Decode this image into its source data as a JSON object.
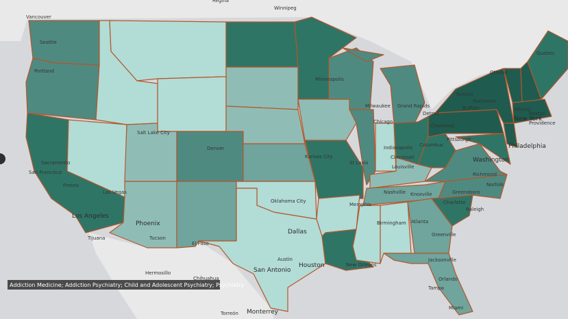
{
  "map": {
    "tooltip": "Addiction Medicine; Addiction Psychiatry; Child and Adolescent Psychiatry; Psychiatry",
    "cities": [
      "Regina",
      "Winnipeg",
      "Vancouver",
      "Seattle",
      "Portland",
      "Quebec",
      "Ottawa",
      "Toronto",
      "Rochester",
      "Buffalo",
      "Albany",
      "Boston",
      "Providence",
      "New York",
      "Philadelphia",
      "Washington",
      "Detroit",
      "Cleveland",
      "Pittsburgh",
      "Columbus",
      "Milwaukee",
      "Grand Rapids",
      "Chicago",
      "Minneapolis",
      "Indianapolis",
      "Cincinnati",
      "Louisville",
      "St Louis",
      "Kansas City",
      "Denver",
      "Salt Lake City",
      "Sacramento",
      "San Francisco",
      "Fresno",
      "Las Vegas",
      "Los Angeles",
      "Tijuana",
      "Phoenix",
      "Tucson",
      "El Paso",
      "Hermosillo",
      "Chihuahua",
      "Oklahoma City",
      "Dallas",
      "Austin",
      "San Antonio",
      "Houston",
      "Monterrey",
      "Torreón",
      "New Orleans",
      "Memphis",
      "Nashville",
      "Knoxville",
      "Birmingham",
      "Atlanta",
      "Greensboro",
      "Charlotte",
      "Raleigh",
      "Richmond",
      "Norfolk",
      "Greenville",
      "Jacksonville",
      "Orlando",
      "Tampa",
      "Miami"
    ]
  }
}
